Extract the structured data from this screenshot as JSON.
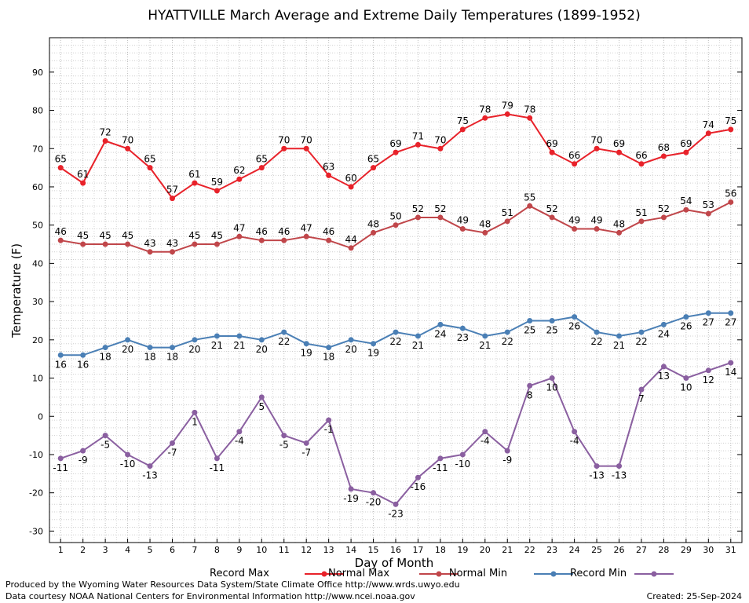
{
  "chart_data": {
    "type": "line",
    "title": "HYATTVILLE March Average and Extreme Daily Temperatures (1899-1952)",
    "xlabel": "Day of Month",
    "ylabel": "Temperature (F)",
    "xlim": [
      0.5,
      31.5
    ],
    "ylim": [
      -33,
      99
    ],
    "yticks": [
      -30,
      -20,
      -10,
      0,
      10,
      20,
      30,
      40,
      50,
      60,
      70,
      80,
      90
    ],
    "x": [
      1,
      2,
      3,
      4,
      5,
      6,
      7,
      8,
      9,
      10,
      11,
      12,
      13,
      14,
      15,
      16,
      17,
      18,
      19,
      20,
      21,
      22,
      23,
      24,
      25,
      26,
      27,
      28,
      29,
      30,
      31
    ],
    "grid": true,
    "legend_position": "bottom",
    "series": [
      {
        "name": "Record Max",
        "color": "#e8222a",
        "values": [
          65,
          61,
          72,
          70,
          65,
          57,
          61,
          59,
          62,
          65,
          70,
          70,
          63,
          60,
          65,
          69,
          71,
          70,
          75,
          78,
          79,
          78,
          69,
          66,
          70,
          69,
          66,
          68,
          69,
          74,
          75
        ]
      },
      {
        "name": "Normal Max",
        "color": "#c0464a",
        "values": [
          46,
          45,
          45,
          45,
          43,
          43,
          45,
          45,
          47,
          46,
          46,
          47,
          46,
          44,
          48,
          50,
          52,
          52,
          49,
          48,
          51,
          55,
          52,
          49,
          49,
          48,
          51,
          52,
          54,
          53,
          56
        ]
      },
      {
        "name": "Normal Min",
        "color": "#4a7fb5",
        "values": [
          16,
          16,
          18,
          20,
          18,
          18,
          20,
          21,
          21,
          20,
          22,
          19,
          18,
          20,
          19,
          22,
          21,
          24,
          23,
          21,
          22,
          25,
          25,
          26,
          22,
          21,
          22,
          24,
          26,
          27,
          27
        ]
      },
      {
        "name": "Record Min",
        "color": "#8a5fa0",
        "values": [
          -11,
          -9,
          -5,
          -10,
          -13,
          -7,
          1,
          -11,
          -4,
          5,
          -5,
          -7,
          -1,
          -19,
          -20,
          -23,
          -16,
          -11,
          -10,
          -4,
          -9,
          8,
          10,
          -4,
          -13,
          -13,
          7,
          13,
          10,
          12,
          14
        ]
      }
    ]
  },
  "footer": {
    "produced_by": "Produced by the Wyoming Water Resources Data System/State Climate Office http://www.wrds.uwyo.edu",
    "data_courtesy": "Data courtesy NOAA National Centers for Environmental Information http://www.ncei.noaa.gov",
    "created": "Created:  25-Sep-2024"
  }
}
